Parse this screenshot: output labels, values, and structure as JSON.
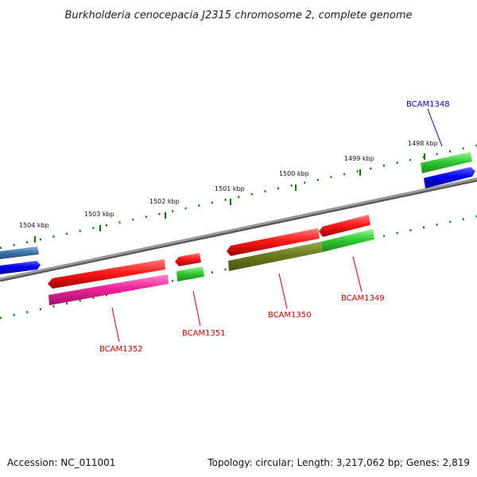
{
  "title": "Burkholderia cenocepacia J2315 chromosome 2, complete genome",
  "footer": {
    "accession": "Accession: NC_011001",
    "summary": "Topology: circular; Length: 3,217,062 bp; Genes: 2,819"
  },
  "scale": {
    "ticks": [
      {
        "label": "1504 kbp"
      },
      {
        "label": "1503 kbp"
      },
      {
        "label": "1502 kbp"
      },
      {
        "label": "1501 kbp"
      },
      {
        "label": "1500 kbp"
      },
      {
        "label": "1499 kbp"
      },
      {
        "label": "1498 kbp"
      }
    ]
  },
  "genes": [
    {
      "name": "BCAM1348",
      "color": "#0000cc"
    },
    {
      "name": "BCAM1349",
      "color": "#cc0000"
    },
    {
      "name": "BCAM1350",
      "color": "#cc0000"
    },
    {
      "name": "BCAM1351",
      "color": "#cc0000"
    },
    {
      "name": "BCAM1352",
      "color": "#cc0000"
    }
  ],
  "colors": {
    "backbone": "#888888",
    "tick": "#007700",
    "red_feature": "#ee1111",
    "green_feature": "#33cc33",
    "olive_feature": "#6b7a1e",
    "magenta_feature": "#ee2299",
    "blue_feature": "#0000ee",
    "steel_feature": "#3f78b0"
  }
}
